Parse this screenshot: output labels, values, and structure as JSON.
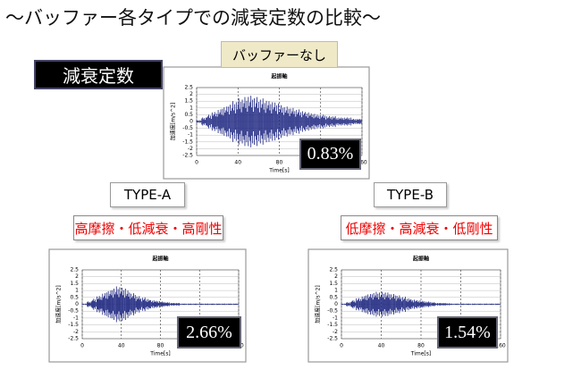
{
  "header": {
    "title": "～バッファー各タイプでの減衰定数の比較～"
  },
  "label": "減衰定数",
  "panels": [
    {
      "name": "バッファーなし",
      "damping": "0.83%",
      "chart_data": {
        "type": "line",
        "title": "起振軸",
        "x_label": "Time[s]",
        "y_label": "加速度[m/s^2]",
        "x": [
          0,
          5,
          10,
          15,
          20,
          25,
          30,
          35,
          40,
          45,
          50,
          55,
          60,
          65,
          70,
          75,
          80,
          85,
          90,
          95,
          100,
          105,
          110,
          115,
          120,
          125,
          130,
          135,
          140,
          145,
          150,
          155
        ],
        "series": [
          {
            "color": "#1a237e",
            "values": [
              0.1,
              0.3,
              0.5,
              0.7,
              0.9,
              1.1,
              1.3,
              1.5,
              1.7,
              1.8,
              1.9,
              1.8,
              1.7,
              1.6,
              1.5,
              1.4,
              1.2,
              1.1,
              1.0,
              0.9,
              0.8,
              0.7,
              0.6,
              0.5,
              0.5,
              0.4,
              0.4,
              0.3,
              0.3,
              0.3,
              0.2,
              0.2
            ]
          }
        ],
        "xlim": [
          0,
          160
        ],
        "xticks": [
          0,
          40,
          80,
          120,
          160
        ],
        "ylim": [
          -2.5,
          2.5
        ],
        "yticks": [
          -2.5,
          -2,
          -1.5,
          -1,
          -0.5,
          0,
          0.5,
          1,
          1.5,
          2,
          2.5
        ],
        "grid": true
      }
    },
    {
      "name": "TYPE-A",
      "desc": "高摩擦・低減衰・高剛性",
      "damping": "2.66%",
      "chart_data": {
        "type": "line",
        "title": "起振軸",
        "x_label": "Time[s]",
        "y_label": "加速度[m/s^2]",
        "x": [
          0,
          5,
          10,
          15,
          20,
          25,
          30,
          35,
          40,
          45,
          50,
          55,
          60,
          65,
          70,
          75,
          80,
          85,
          90,
          95,
          100,
          105,
          110,
          115,
          120,
          125,
          130,
          135,
          140,
          145,
          150,
          155
        ],
        "series": [
          {
            "color": "#1a237e",
            "values": [
              0.05,
              0.2,
              0.4,
              0.6,
              0.8,
              1.0,
              1.2,
              1.3,
              1.2,
              1.0,
              0.8,
              0.6,
              0.5,
              0.4,
              0.3,
              0.25,
              0.2,
              0.15,
              0.1,
              0.1,
              0.05,
              0.05,
              0.05,
              0.05,
              0.05,
              0.05,
              0.05,
              0.05,
              0.05,
              0.05,
              0.05,
              0.05
            ]
          }
        ],
        "xlim": [
          0,
          160
        ],
        "xticks": [
          0,
          40,
          80,
          120,
          160
        ],
        "ylim": [
          -2.5,
          2.5
        ],
        "yticks": [
          -2.5,
          -2,
          -1.5,
          -1,
          -0.5,
          0,
          0.5,
          1,
          1.5,
          2,
          2.5
        ],
        "grid": true
      }
    },
    {
      "name": "TYPE-B",
      "desc": "低摩擦・高減衰・低剛性",
      "damping": "1.54%",
      "chart_data": {
        "type": "line",
        "title": "起振軸",
        "x_label": "Time[s]",
        "y_label": "加速度[m/s^2]",
        "x": [
          0,
          5,
          10,
          15,
          20,
          25,
          30,
          35,
          40,
          45,
          50,
          55,
          60,
          65,
          70,
          75,
          80,
          85,
          90,
          95,
          100,
          105,
          110,
          115,
          120,
          125,
          130,
          135,
          140,
          145,
          150,
          155
        ],
        "series": [
          {
            "color": "#1a237e",
            "values": [
              0.05,
              0.15,
              0.3,
              0.45,
              0.6,
              0.75,
              0.85,
              0.9,
              0.9,
              0.85,
              0.75,
              0.65,
              0.55,
              0.45,
              0.35,
              0.3,
              0.25,
              0.2,
              0.15,
              0.1,
              0.1,
              0.08,
              0.05,
              0.05,
              0.05,
              0.05,
              0.05,
              0.05,
              0.05,
              0.05,
              0.05,
              0.05
            ]
          }
        ],
        "xlim": [
          0,
          160
        ],
        "xticks": [
          0,
          40,
          80,
          120,
          160
        ],
        "ylim": [
          -2.5,
          2.5
        ],
        "yticks": [
          -2.5,
          -2,
          -1.5,
          -1,
          -0.5,
          0,
          0.5,
          1,
          1.5,
          2,
          2.5
        ],
        "grid": true
      }
    }
  ]
}
